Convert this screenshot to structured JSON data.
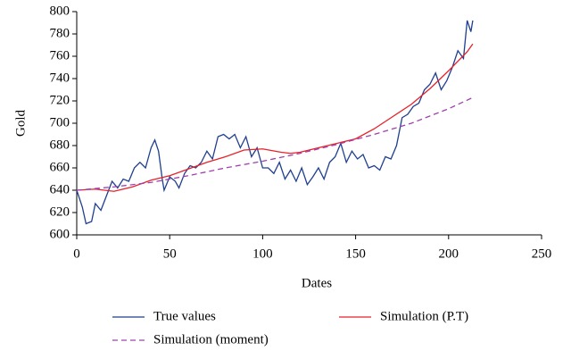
{
  "chart_data": {
    "type": "line",
    "xlabel": "Dates",
    "ylabel": "Gold",
    "xlim": [
      0,
      250
    ],
    "xticks": [
      0,
      50,
      100,
      150,
      200,
      250
    ],
    "ylim": [
      600,
      800
    ],
    "yticks": [
      600,
      620,
      640,
      660,
      680,
      700,
      720,
      740,
      760,
      780,
      800
    ],
    "legend": "bottom",
    "series": [
      {
        "name": "True values",
        "color": "#1f3f8f",
        "dash": "solid",
        "x": [
          0,
          3,
          5,
          8,
          10,
          13,
          16,
          19,
          22,
          25,
          28,
          31,
          34,
          37,
          40,
          42,
          44,
          46,
          47,
          50,
          53,
          55,
          58,
          61,
          64,
          67,
          70,
          73,
          76,
          79,
          82,
          85,
          88,
          91,
          94,
          97,
          100,
          103,
          106,
          109,
          112,
          115,
          118,
          121,
          124,
          127,
          130,
          133,
          136,
          139,
          142,
          145,
          148,
          151,
          154,
          157,
          160,
          163,
          166,
          169,
          172,
          175,
          178,
          181,
          184,
          187,
          190,
          193,
          196,
          199,
          202,
          205,
          208,
          210,
          212,
          213
        ],
        "values": [
          640,
          625,
          610,
          612,
          628,
          622,
          635,
          648,
          642,
          650,
          648,
          660,
          665,
          660,
          678,
          685,
          675,
          650,
          640,
          652,
          648,
          642,
          655,
          662,
          660,
          665,
          675,
          668,
          688,
          690,
          686,
          690,
          678,
          688,
          670,
          678,
          660,
          660,
          655,
          665,
          650,
          658,
          648,
          660,
          645,
          652,
          660,
          650,
          665,
          670,
          682,
          665,
          675,
          668,
          672,
          660,
          662,
          658,
          670,
          668,
          680,
          705,
          708,
          715,
          718,
          730,
          735,
          745,
          730,
          738,
          750,
          765,
          758,
          792,
          782,
          792
        ]
      },
      {
        "name": "Simulation (P.T)",
        "color": "#e8202a",
        "dash": "solid",
        "x": [
          0,
          10,
          20,
          30,
          40,
          50,
          60,
          70,
          80,
          90,
          100,
          110,
          115,
          120,
          130,
          140,
          150,
          160,
          170,
          180,
          190,
          200,
          210,
          213
        ],
        "values": [
          640,
          641,
          639,
          643,
          649,
          653,
          659,
          665,
          670,
          676,
          677,
          674,
          673,
          674,
          678,
          682,
          686,
          695,
          706,
          717,
          731,
          747,
          764,
          771
        ]
      },
      {
        "name": "Simulation (moment)",
        "color": "#a040b0",
        "dash": "dashed",
        "x": [
          0,
          20,
          40,
          60,
          80,
          100,
          120,
          140,
          160,
          180,
          200,
          213
        ],
        "values": [
          640,
          643,
          647,
          653,
          660,
          666,
          673,
          681,
          690,
          700,
          713,
          723
        ]
      }
    ]
  }
}
